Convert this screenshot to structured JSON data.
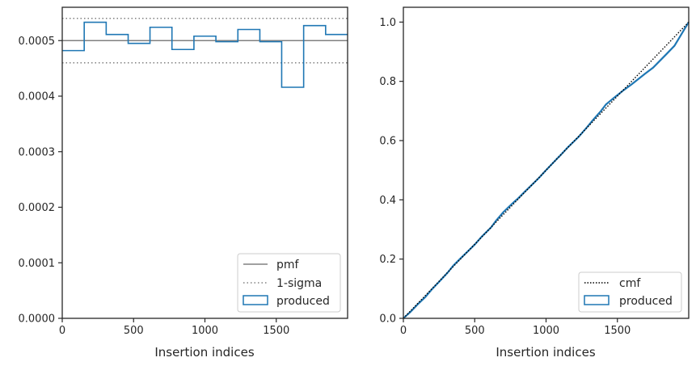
{
  "chart_data": [
    {
      "type": "histogram-step",
      "xlabel": "Insertion indices",
      "ylabel": "",
      "xlim": [
        0,
        2000
      ],
      "ylim": [
        0,
        0.00056
      ],
      "x_ticks": [
        {
          "value": 0,
          "label": "0"
        },
        {
          "value": 500,
          "label": "500"
        },
        {
          "value": 1000,
          "label": "1000"
        },
        {
          "value": 1500,
          "label": "1500"
        }
      ],
      "y_ticks": [
        {
          "value": 0,
          "label": "0.0000"
        },
        {
          "value": 0.0001,
          "label": "0.0001"
        },
        {
          "value": 0.0002,
          "label": "0.0002"
        },
        {
          "value": 0.0003,
          "label": "0.0003"
        },
        {
          "value": 0.0004,
          "label": "0.0004"
        },
        {
          "value": 0.0005,
          "label": "0.0005"
        }
      ],
      "pmf": 0.0005,
      "sigma_band": [
        0.00046,
        0.00054
      ],
      "bin_edges": [
        0,
        154,
        308,
        462,
        615,
        769,
        923,
        1077,
        1231,
        1385,
        1538,
        1692,
        1846,
        2000
      ],
      "produced": [
        0.000482,
        0.000533,
        0.000511,
        0.000495,
        0.000524,
        0.000484,
        0.000508,
        0.000498,
        0.00052,
        0.000498,
        0.000416,
        0.000527,
        0.000511
      ],
      "legend": [
        {
          "label": "pmf",
          "style": "solid",
          "color": "#808080"
        },
        {
          "label": "1-sigma",
          "style": "dotted",
          "color": "#808080"
        },
        {
          "label": "produced",
          "style": "patch",
          "color": "#1f77b4"
        }
      ],
      "legend_position": "lower right"
    },
    {
      "type": "line",
      "xlabel": "Insertion indices",
      "ylabel": "",
      "xlim": [
        0,
        2000
      ],
      "ylim": [
        0,
        1.05
      ],
      "x_ticks": [
        {
          "value": 0,
          "label": "0"
        },
        {
          "value": 500,
          "label": "500"
        },
        {
          "value": 1000,
          "label": "1000"
        },
        {
          "value": 1500,
          "label": "1500"
        }
      ],
      "y_ticks": [
        {
          "value": 0,
          "label": "0.0"
        },
        {
          "value": 0.2,
          "label": "0.2"
        },
        {
          "value": 0.4,
          "label": "0.4"
        },
        {
          "value": 0.6,
          "label": "0.6"
        },
        {
          "value": 0.8,
          "label": "0.8"
        },
        {
          "value": 1.0,
          "label": "1.0"
        }
      ],
      "cmf": {
        "x": [
          0,
          2000
        ],
        "y": [
          0,
          1
        ]
      },
      "produced": {
        "x": [
          0,
          50,
          100,
          154,
          200,
          250,
          308,
          350,
          400,
          462,
          500,
          550,
          615,
          650,
          700,
          769,
          800,
          850,
          923,
          950,
          1000,
          1077,
          1100,
          1150,
          1231,
          1280,
          1330,
          1385,
          1420,
          1470,
          1538,
          1600,
          1692,
          1750,
          1846,
          1900,
          2000
        ],
        "y": [
          0,
          0.022,
          0.047,
          0.072,
          0.098,
          0.123,
          0.153,
          0.178,
          0.202,
          0.231,
          0.249,
          0.276,
          0.307,
          0.33,
          0.358,
          0.39,
          0.403,
          0.427,
          0.461,
          0.474,
          0.5,
          0.539,
          0.55,
          0.576,
          0.614,
          0.641,
          0.67,
          0.7,
          0.722,
          0.742,
          0.768,
          0.79,
          0.825,
          0.846,
          0.893,
          0.92,
          1.0
        ]
      },
      "legend": [
        {
          "label": "cmf",
          "style": "dotted",
          "color": "#000000"
        },
        {
          "label": "produced",
          "style": "patch",
          "color": "#1f77b4"
        }
      ],
      "legend_position": "lower right"
    }
  ]
}
